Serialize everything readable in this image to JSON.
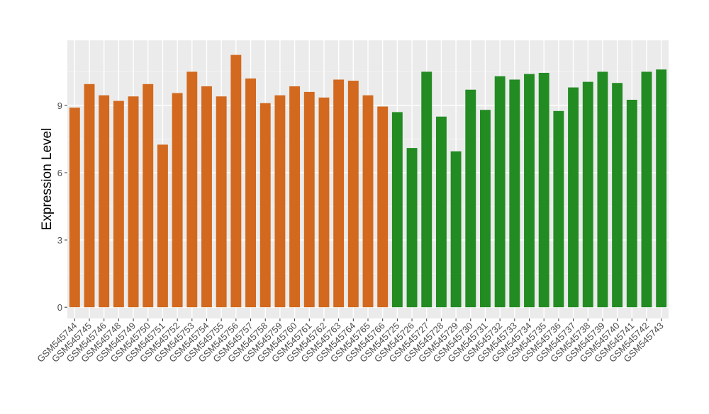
{
  "chart_data": {
    "type": "bar",
    "ylabel": "Expression Level",
    "xlabel": "",
    "ylim": [
      -0.5,
      11.9
    ],
    "yticks": [
      0,
      3,
      6,
      9
    ],
    "grid": true,
    "panel_background": "#ebebeb",
    "categories": [
      "GSM545744",
      "GSM545745",
      "GSM545746",
      "GSM545748",
      "GSM545749",
      "GSM545750",
      "GSM545751",
      "GSM545752",
      "GSM545753",
      "GSM545754",
      "GSM545755",
      "GSM545756",
      "GSM545757",
      "GSM545758",
      "GSM545759",
      "GSM545760",
      "GSM545761",
      "GSM545762",
      "GSM545763",
      "GSM545764",
      "GSM545765",
      "GSM545766",
      "GSM545725",
      "GSM545726",
      "GSM545727",
      "GSM545728",
      "GSM545729",
      "GSM545730",
      "GSM545731",
      "GSM545732",
      "GSM545733",
      "GSM545734",
      "GSM545735",
      "GSM545736",
      "GSM545737",
      "GSM545738",
      "GSM545739",
      "GSM545740",
      "GSM545741",
      "GSM545742",
      "GSM545743"
    ],
    "values": [
      8.9,
      9.95,
      9.45,
      9.2,
      9.4,
      9.95,
      7.25,
      9.55,
      10.5,
      9.85,
      9.4,
      11.25,
      10.2,
      9.1,
      9.45,
      9.85,
      9.6,
      9.35,
      10.15,
      10.1,
      9.45,
      8.95,
      8.7,
      7.1,
      10.5,
      8.5,
      6.95,
      9.7,
      8.8,
      10.3,
      10.15,
      10.4,
      10.45,
      8.75,
      9.8,
      10.05,
      10.5,
      10.0,
      9.25,
      10.5,
      10.6
    ],
    "colors": [
      "#d2691e",
      "#d2691e",
      "#d2691e",
      "#d2691e",
      "#d2691e",
      "#d2691e",
      "#d2691e",
      "#d2691e",
      "#d2691e",
      "#d2691e",
      "#d2691e",
      "#d2691e",
      "#d2691e",
      "#d2691e",
      "#d2691e",
      "#d2691e",
      "#d2691e",
      "#d2691e",
      "#d2691e",
      "#d2691e",
      "#d2691e",
      "#d2691e",
      "#228b22",
      "#228b22",
      "#228b22",
      "#228b22",
      "#228b22",
      "#228b22",
      "#228b22",
      "#228b22",
      "#228b22",
      "#228b22",
      "#228b22",
      "#228b22",
      "#228b22",
      "#228b22",
      "#228b22",
      "#228b22",
      "#228b22",
      "#228b22",
      "#228b22"
    ]
  }
}
